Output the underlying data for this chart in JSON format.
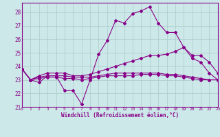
{
  "xlabel": "Windchill (Refroidissement éolien,°C)",
  "ylabel": "",
  "xlim": [
    0,
    23
  ],
  "ylim": [
    21,
    28.7
  ],
  "yticks": [
    21,
    22,
    23,
    24,
    25,
    26,
    27,
    28
  ],
  "xticks": [
    0,
    1,
    2,
    3,
    4,
    5,
    6,
    7,
    8,
    9,
    10,
    11,
    12,
    13,
    14,
    15,
    16,
    17,
    18,
    19,
    20,
    21,
    22,
    23
  ],
  "bg_color": "#cce8e8",
  "grid_color": "#aacccc",
  "line_color": "#880088",
  "lines": [
    [
      23.8,
      23.0,
      22.8,
      23.3,
      23.3,
      22.2,
      22.2,
      21.2,
      23.0,
      24.9,
      25.9,
      27.4,
      27.2,
      27.9,
      28.1,
      28.4,
      27.2,
      26.5,
      26.5,
      25.4,
      24.6,
      24.3,
      23.5,
      23.0
    ],
    [
      23.8,
      23.0,
      23.3,
      23.5,
      23.5,
      23.5,
      23.3,
      23.3,
      23.4,
      23.6,
      23.8,
      24.0,
      24.2,
      24.4,
      24.6,
      24.8,
      24.8,
      24.9,
      25.1,
      25.4,
      24.8,
      24.8,
      24.3,
      23.5
    ],
    [
      23.8,
      23.0,
      23.2,
      23.3,
      23.3,
      23.3,
      23.2,
      23.2,
      23.2,
      23.3,
      23.4,
      23.5,
      23.5,
      23.5,
      23.5,
      23.5,
      23.5,
      23.4,
      23.4,
      23.3,
      23.2,
      23.1,
      23.0,
      23.0
    ],
    [
      23.8,
      23.0,
      23.1,
      23.2,
      23.2,
      23.1,
      23.1,
      23.0,
      23.1,
      23.2,
      23.3,
      23.3,
      23.3,
      23.3,
      23.4,
      23.4,
      23.4,
      23.3,
      23.3,
      23.2,
      23.1,
      23.0,
      23.0,
      23.0
    ]
  ]
}
